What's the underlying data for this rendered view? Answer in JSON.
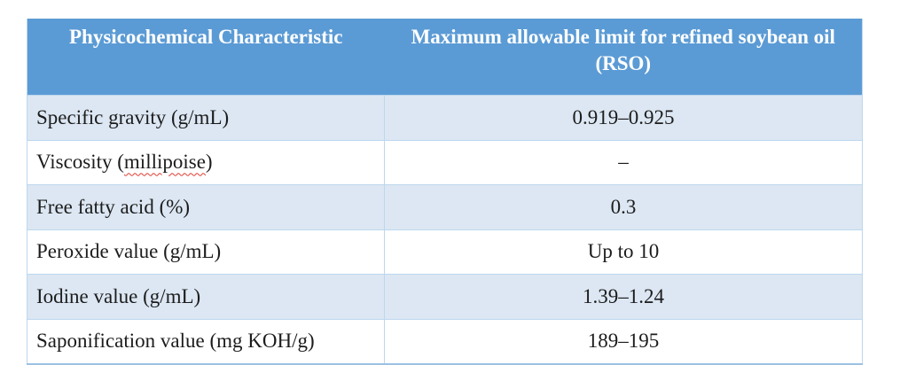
{
  "table": {
    "columns": [
      {
        "label": "Physicochemical Characteristic"
      },
      {
        "label": "Maximum allowable limit for refined soybean oil (RSO)"
      }
    ],
    "rows": [
      {
        "characteristic": "Specific gravity (g/mL)",
        "limit": "0.919–0.925"
      },
      {
        "characteristic_prefix": "Viscosity (",
        "misspelled_word": "millipoise",
        "characteristic_suffix": ")",
        "limit": "–"
      },
      {
        "characteristic": "Free fatty acid (%)",
        "limit": "0.3"
      },
      {
        "characteristic": "Peroxide value (g/mL)",
        "limit": "Up to 10"
      },
      {
        "characteristic": "Iodine value (g/mL)",
        "limit": "1.39–1.24"
      },
      {
        "characteristic": "Saponification value (mg KOH/g)",
        "limit": "189–195"
      }
    ]
  },
  "colors": {
    "header_background": "#5b9bd5",
    "header_text": "#ffffff",
    "shaded_row_background": "#dce7f3",
    "plain_row_background": "#ffffff",
    "grid_line": "#bdd7ee",
    "bottom_border": "#9cc2e3",
    "body_text": "#1c1c1c",
    "spellcheck_underline": "#e03c31"
  }
}
